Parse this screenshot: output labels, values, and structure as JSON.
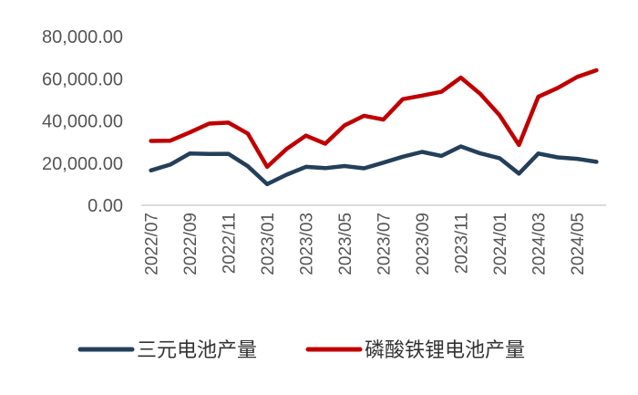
{
  "chart_data": {
    "type": "line",
    "title": "",
    "xlabel": "",
    "ylabel": "",
    "ylim": [
      0,
      80000
    ],
    "y_ticks": [
      "0.00",
      "20,000.00",
      "40,000.00",
      "60,000.00",
      "80,000.00"
    ],
    "y_tick_values": [
      0,
      20000,
      40000,
      60000,
      80000
    ],
    "x": [
      "2022/07",
      "2022/08",
      "2022/09",
      "2022/10",
      "2022/11",
      "2022/12",
      "2023/01",
      "2023/02",
      "2023/03",
      "2023/04",
      "2023/05",
      "2023/06",
      "2023/07",
      "2023/08",
      "2023/09",
      "2023/10",
      "2023/11",
      "2023/12",
      "2024/01",
      "2024/02",
      "2024/03",
      "2024/04",
      "2024/05",
      "2024/06"
    ],
    "x_tick_labels": [
      "2022/07",
      "2022/09",
      "2022/11",
      "2023/01",
      "2023/03",
      "2023/05",
      "2023/07",
      "2023/09",
      "2023/11",
      "2024/01",
      "2024/03",
      "2024/05"
    ],
    "grid": false,
    "legend_position": "bottom",
    "series": [
      {
        "name": "三元电池产量",
        "color": "#243f5a",
        "values": [
          16500,
          19300,
          24500,
          24300,
          24400,
          18500,
          10000,
          14500,
          18200,
          17600,
          18600,
          17500,
          20200,
          23000,
          25300,
          23400,
          27900,
          24600,
          22300,
          15000,
          24500,
          22700,
          22000,
          20600
        ]
      },
      {
        "name": "磷酸铁锂电池产量",
        "color": "#c00000",
        "values": [
          30500,
          30600,
          34500,
          38700,
          39200,
          34000,
          18200,
          26700,
          33000,
          29200,
          37900,
          42400,
          40600,
          50300,
          52000,
          53800,
          60500,
          52800,
          42700,
          28600,
          51400,
          55600,
          60800,
          64000
        ]
      }
    ]
  }
}
